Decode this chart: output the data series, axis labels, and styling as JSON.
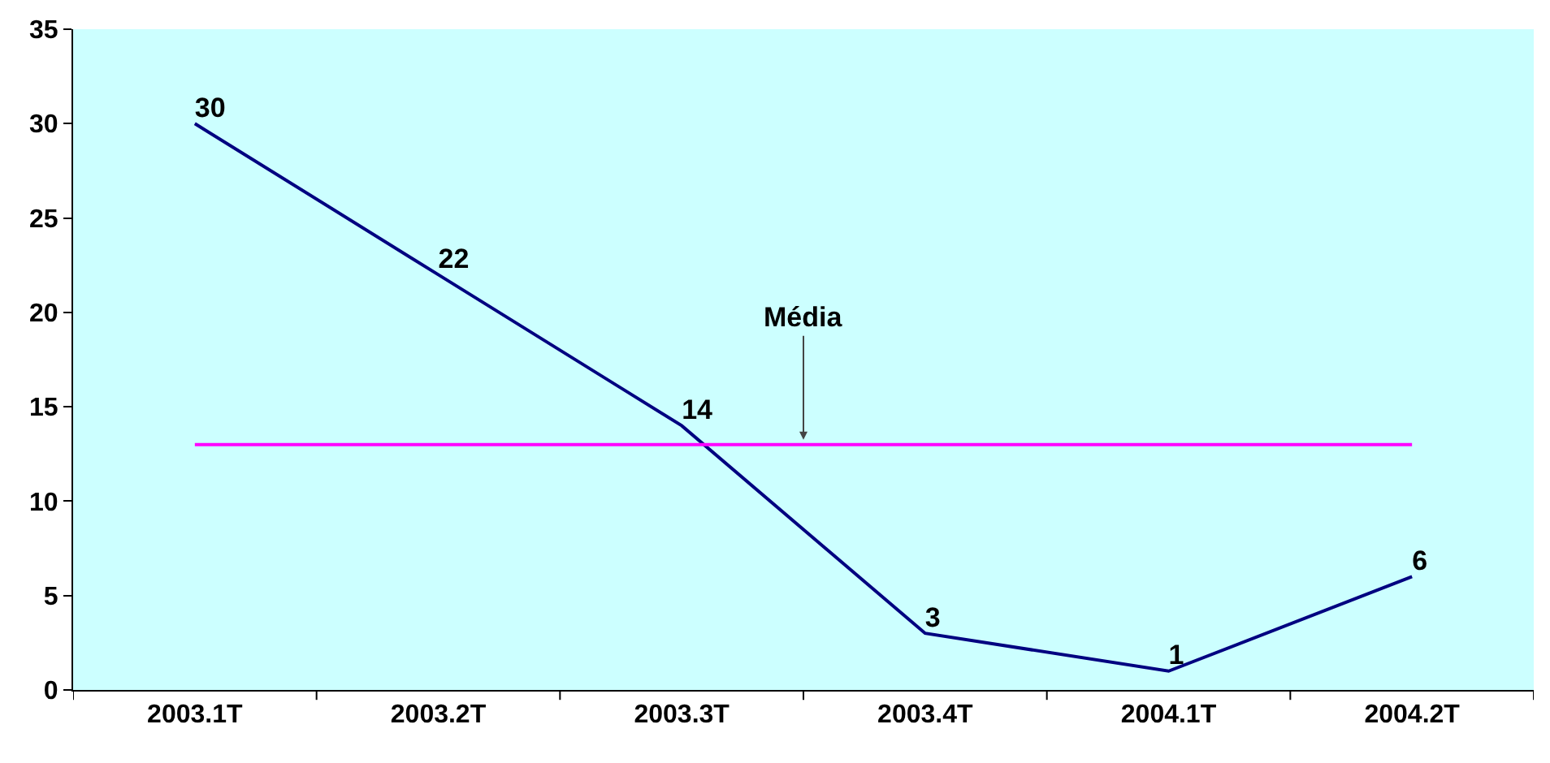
{
  "chart_data": {
    "type": "line",
    "categories": [
      "2003.1T",
      "2003.2T",
      "2003.3T",
      "2003.4T",
      "2004.1T",
      "2004.2T"
    ],
    "series": [
      {
        "color": "#000080",
        "values": [
          30,
          22,
          14,
          3,
          1,
          6
        ]
      }
    ],
    "data_labels": true,
    "ylim": [
      0,
      35
    ],
    "yticks": [
      0,
      5,
      10,
      15,
      20,
      25,
      30,
      35
    ],
    "grid": false,
    "marker": "none",
    "ref_lines": [
      {
        "axis": "y",
        "value": 13,
        "label": "Média",
        "color": "#ff00ff"
      }
    ]
  }
}
